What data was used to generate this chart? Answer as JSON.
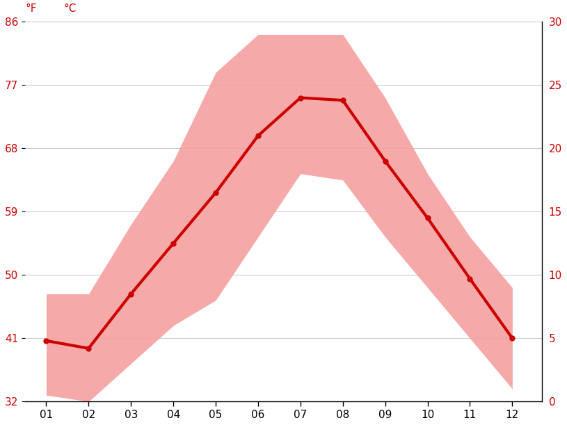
{
  "months": [
    1,
    2,
    3,
    4,
    5,
    6,
    7,
    8,
    9,
    10,
    11,
    12
  ],
  "month_labels": [
    "01",
    "02",
    "03",
    "04",
    "05",
    "06",
    "07",
    "08",
    "09",
    "10",
    "11",
    "12"
  ],
  "mean": [
    4.8,
    4.2,
    8.5,
    12.5,
    16.5,
    21.0,
    24.0,
    23.8,
    19.0,
    14.5,
    9.7,
    5.0
  ],
  "upper": [
    8.5,
    8.5,
    14.0,
    19.0,
    26.0,
    29.0,
    29.0,
    29.0,
    24.0,
    18.0,
    13.0,
    9.0
  ],
  "lower": [
    0.5,
    0.0,
    3.0,
    6.0,
    8.0,
    13.0,
    18.0,
    17.5,
    13.0,
    9.0,
    5.0,
    1.0
  ],
  "ylim": [
    0,
    30
  ],
  "yticks_c": [
    0,
    5,
    10,
    15,
    20,
    25,
    30
  ],
  "yticks_f": [
    32,
    41,
    50,
    59,
    68,
    77,
    86
  ],
  "line_color": "#cc0000",
  "band_color": "#f5a0a0",
  "band_alpha": 0.9,
  "background_color": "#ffffff",
  "grid_color": "#cccccc",
  "tick_color": "#cc0000",
  "line_width": 3.0,
  "marker_size": 5,
  "fig_width": 8.15,
  "fig_height": 6.11,
  "dpi": 100
}
